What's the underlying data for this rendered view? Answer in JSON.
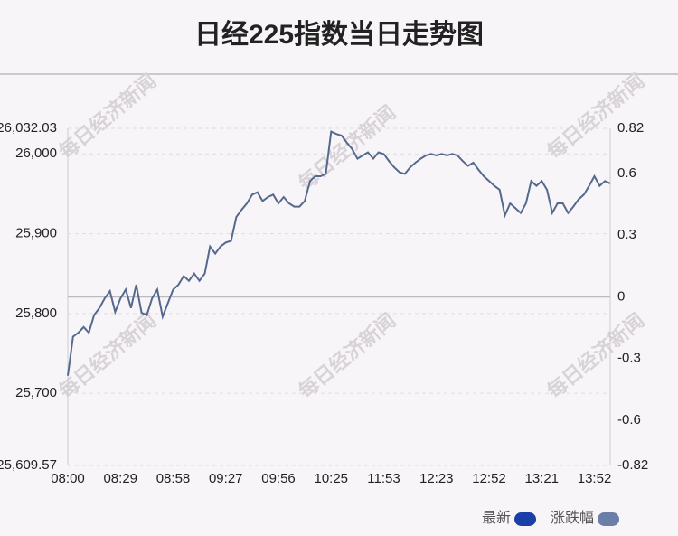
{
  "chart_data": {
    "type": "line",
    "title": "日经225指数当日走势图",
    "watermark": "每日经济新闻",
    "categories": [
      "08:00",
      null,
      null,
      null,
      null,
      null,
      null,
      null,
      null,
      null,
      "08:29",
      null,
      null,
      null,
      null,
      null,
      null,
      null,
      null,
      null,
      "08:58",
      null,
      null,
      null,
      null,
      null,
      null,
      null,
      null,
      null,
      "09:27",
      null,
      null,
      null,
      null,
      null,
      null,
      null,
      null,
      null,
      "09:56",
      null,
      null,
      null,
      null,
      null,
      null,
      null,
      null,
      null,
      "10:25",
      null,
      null,
      null,
      null,
      null,
      null,
      null,
      null,
      null,
      "11:53",
      null,
      null,
      null,
      null,
      null,
      null,
      null,
      null,
      null,
      "12:23",
      null,
      null,
      null,
      null,
      null,
      null,
      null,
      null,
      null,
      "12:52",
      null,
      null,
      null,
      null,
      null,
      null,
      null,
      null,
      null,
      "13:21",
      null,
      null,
      null,
      null,
      null,
      null,
      null,
      null,
      null,
      "13:52",
      null,
      null,
      null
    ],
    "series": [
      {
        "color": "#55698f",
        "values": [
          25722,
          25771,
          25776,
          25783,
          25776,
          25798,
          25807,
          25819,
          25828,
          25802,
          25819,
          25830,
          25807,
          25836,
          25801,
          25798,
          25819,
          25830,
          25796,
          25813,
          25830,
          25836,
          25847,
          25841,
          25850,
          25841,
          25850,
          25884,
          25875,
          25884,
          25889,
          25891,
          25921,
          25930,
          25938,
          25949,
          25952,
          25941,
          25946,
          25949,
          25938,
          25946,
          25938,
          25934,
          25934,
          25941,
          25966,
          25972,
          25972,
          25975,
          26028,
          26025,
          26023,
          26014,
          26006,
          25994,
          25998,
          26002,
          25994,
          26002,
          26000,
          25991,
          25983,
          25977,
          25975,
          25983,
          25989,
          25994,
          25998,
          26000,
          25998,
          26000,
          25998,
          26000,
          25998,
          25991,
          25985,
          25989,
          25980,
          25972,
          25966,
          25960,
          25955,
          25923,
          25938,
          25932,
          25926,
          25938,
          25966,
          25960,
          25966,
          25955,
          25926,
          25938,
          25938,
          25926,
          25934,
          25943,
          25949,
          25960,
          25972,
          25960,
          25966,
          25963
        ]
      }
    ],
    "ylim": [
      25609.57,
      26032.03
    ],
    "yticks": [
      {
        "value": 25609.57,
        "label": "25,609.57"
      },
      {
        "value": 25700,
        "label": "25,700"
      },
      {
        "value": 25800,
        "label": "25,800"
      },
      {
        "value": 25900,
        "label": "25,900"
      },
      {
        "value": 26000,
        "label": "26,000"
      },
      {
        "value": 26032.03,
        "label": "26,032.03"
      }
    ],
    "y2lim": [
      -0.82,
      0.82
    ],
    "y2ticks": [
      -0.82,
      -0.6,
      -0.3,
      0,
      0.3,
      0.6,
      0.82
    ],
    "legend": [
      {
        "name": "最新",
        "color": "#1a3fa6"
      },
      {
        "name": "涨跌幅",
        "color": "#6a7ea8"
      }
    ],
    "grid": true
  }
}
